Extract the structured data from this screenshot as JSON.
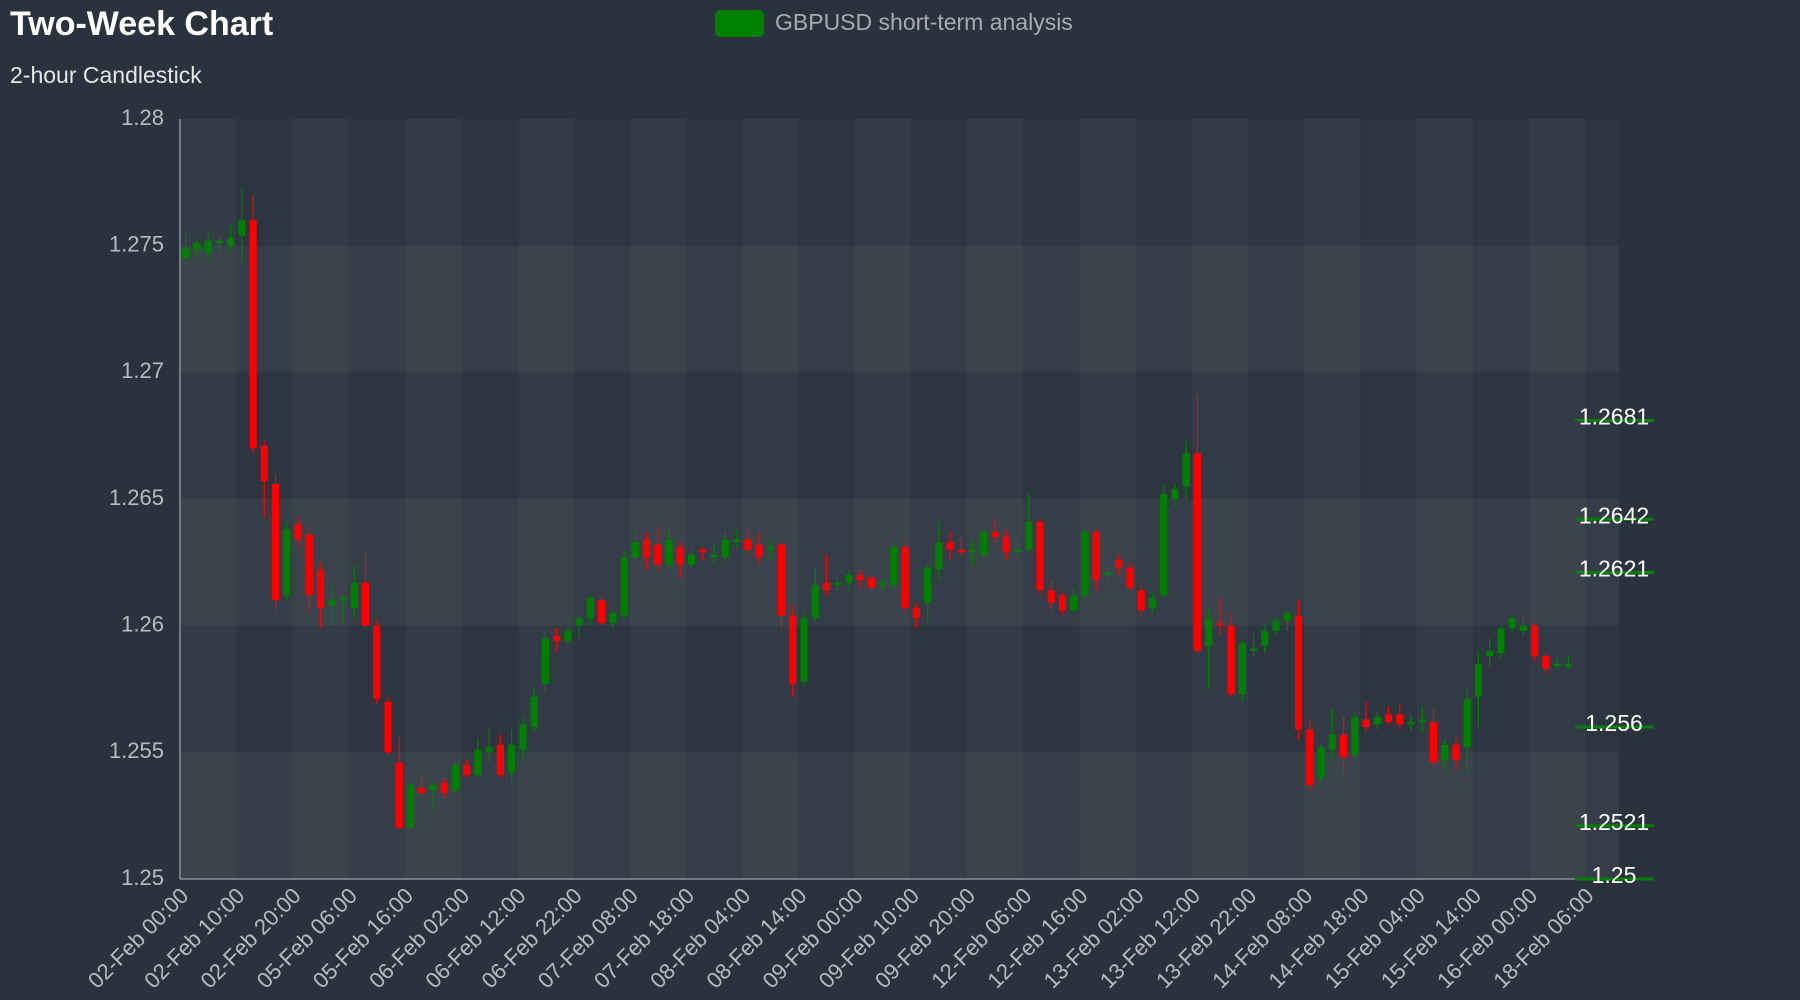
{
  "chart_data": {
    "type": "candlestick",
    "title": "Two-Week Chart",
    "subtitle": "2-hour Candlestick",
    "categories": [
      "02-Feb 00:00",
      null,
      null,
      null,
      null,
      "02-Feb 10:00",
      null,
      null,
      null,
      null,
      "02-Feb 20:00",
      null,
      null,
      null,
      null,
      "05-Feb 06:00",
      null,
      null,
      null,
      null,
      "05-Feb 16:00",
      null,
      null,
      null,
      null,
      "06-Feb 02:00",
      null,
      null,
      null,
      null,
      "06-Feb 12:00",
      null,
      null,
      null,
      null,
      "06-Feb 22:00",
      null,
      null,
      null,
      null,
      "07-Feb 08:00",
      null,
      null,
      null,
      null,
      "07-Feb 18:00",
      null,
      null,
      null,
      null,
      "08-Feb 04:00",
      null,
      null,
      null,
      null,
      "08-Feb 14:00",
      null,
      null,
      null,
      null,
      "09-Feb 00:00",
      null,
      null,
      null,
      null,
      "09-Feb 10:00",
      null,
      null,
      null,
      null,
      "09-Feb 20:00",
      null,
      null,
      null,
      null,
      "12-Feb 06:00",
      null,
      null,
      null,
      null,
      "12-Feb 16:00",
      null,
      null,
      null,
      null,
      "13-Feb 02:00",
      null,
      null,
      null,
      null,
      "13-Feb 12:00",
      null,
      null,
      null,
      null,
      "13-Feb 22:00",
      null,
      null,
      null,
      null,
      "14-Feb 08:00",
      null,
      null,
      null,
      null,
      "14-Feb 18:00",
      null,
      null,
      null,
      null,
      "15-Feb 04:00",
      null,
      null,
      null,
      null,
      "15-Feb 14:00",
      null,
      null,
      null,
      null,
      "16-Feb 00:00",
      null,
      null,
      null,
      null,
      "18-Feb 06:00",
      null,
      null
    ],
    "series": [
      {
        "name": "GBPUSD short-term analysis",
        "color": "#008000",
        "down_color": "#ff0000",
        "values": [
          [
            1.2745,
            1.2755,
            1.2743,
            1.2749
          ],
          [
            1.2748,
            1.2753,
            1.2745,
            1.2751
          ],
          [
            1.2747,
            1.2755,
            1.2744,
            1.2752
          ],
          [
            1.2751,
            1.2754,
            1.2747,
            1.2752
          ],
          [
            1.275,
            1.2758,
            1.2748,
            1.2753
          ],
          [
            1.2754,
            1.2773,
            1.2743,
            1.276
          ],
          [
            1.276,
            1.277,
            1.2668,
            1.267
          ],
          [
            1.2671,
            1.2673,
            1.2643,
            1.2657
          ],
          [
            1.2656,
            1.266,
            1.2606,
            1.261
          ],
          [
            1.2612,
            1.2641,
            1.261,
            1.2638
          ],
          [
            1.264,
            1.2643,
            1.2631,
            1.2634
          ],
          [
            1.2636,
            1.2639,
            1.2605,
            1.2612
          ],
          [
            1.2622,
            1.2625,
            1.2599,
            1.2607
          ],
          [
            1.2608,
            1.2616,
            1.26,
            1.261
          ],
          [
            1.261,
            1.2612,
            1.2601,
            1.2611
          ],
          [
            1.2607,
            1.2624,
            1.2603,
            1.2617
          ],
          [
            1.2617,
            1.2629,
            1.2599,
            1.26
          ],
          [
            1.26,
            1.2602,
            1.2569,
            1.2571
          ],
          [
            1.257,
            1.2572,
            1.2549,
            1.255
          ],
          [
            1.2546,
            1.2556,
            1.252,
            1.252
          ],
          [
            1.252,
            1.2538,
            1.252,
            1.2537
          ],
          [
            1.2536,
            1.2541,
            1.2533,
            1.2534
          ],
          [
            1.2535,
            1.2538,
            1.2527,
            1.2537
          ],
          [
            1.2538,
            1.254,
            1.2532,
            1.2534
          ],
          [
            1.2535,
            1.2547,
            1.2533,
            1.2545
          ],
          [
            1.2545,
            1.2547,
            1.254,
            1.2541
          ],
          [
            1.2541,
            1.2555,
            1.254,
            1.2551
          ],
          [
            1.255,
            1.256,
            1.2546,
            1.2552
          ],
          [
            1.2553,
            1.2557,
            1.254,
            1.2541
          ],
          [
            1.2542,
            1.2559,
            1.2538,
            1.2553
          ],
          [
            1.2551,
            1.2564,
            1.2547,
            1.2561
          ],
          [
            1.256,
            1.2575,
            1.2558,
            1.2572
          ],
          [
            1.2577,
            1.2598,
            1.2574,
            1.2595
          ],
          [
            1.2596,
            1.2599,
            1.259,
            1.2594
          ],
          [
            1.2594,
            1.26,
            1.2593,
            1.2598
          ],
          [
            1.26,
            1.2604,
            1.2595,
            1.2603
          ],
          [
            1.2603,
            1.2612,
            1.26,
            1.2611
          ],
          [
            1.261,
            1.2612,
            1.26,
            1.2601
          ],
          [
            1.2601,
            1.2606,
            1.2599,
            1.2605
          ],
          [
            1.2604,
            1.263,
            1.2602,
            1.2627
          ],
          [
            1.2627,
            1.2638,
            1.2625,
            1.2633
          ],
          [
            1.2634,
            1.2637,
            1.2622,
            1.2627
          ],
          [
            1.2632,
            1.2639,
            1.2621,
            1.2624
          ],
          [
            1.2624,
            1.2638,
            1.2622,
            1.2634
          ],
          [
            1.2631,
            1.2633,
            1.2619,
            1.2624
          ],
          [
            1.2624,
            1.263,
            1.2622,
            1.2628
          ],
          [
            1.263,
            1.2631,
            1.2626,
            1.2629
          ],
          [
            1.2627,
            1.2632,
            1.2624,
            1.2628
          ],
          [
            1.2627,
            1.2637,
            1.2625,
            1.2634
          ],
          [
            1.2633,
            1.2638,
            1.2631,
            1.2634
          ],
          [
            1.2634,
            1.2638,
            1.2628,
            1.263
          ],
          [
            1.2632,
            1.2637,
            1.2624,
            1.2627
          ],
          [
            1.263,
            1.2634,
            1.2626,
            1.2631
          ],
          [
            1.2632,
            1.2634,
            1.2599,
            1.2604
          ],
          [
            1.2604,
            1.2608,
            1.2572,
            1.2577
          ],
          [
            1.2578,
            1.2606,
            1.2576,
            1.2603
          ],
          [
            1.2603,
            1.2623,
            1.2601,
            1.2616
          ],
          [
            1.2617,
            1.2628,
            1.2612,
            1.2614
          ],
          [
            1.2616,
            1.2619,
            1.2614,
            1.2617
          ],
          [
            1.2617,
            1.2622,
            1.2614,
            1.262
          ],
          [
            1.262,
            1.2622,
            1.2615,
            1.2618
          ],
          [
            1.2619,
            1.262,
            1.2613,
            1.2615
          ],
          [
            1.2616,
            1.2618,
            1.2614,
            1.2617
          ],
          [
            1.2616,
            1.2634,
            1.2614,
            1.2631
          ],
          [
            1.2631,
            1.2633,
            1.2605,
            1.2607
          ],
          [
            1.2607,
            1.2609,
            1.2599,
            1.2603
          ],
          [
            1.2609,
            1.2625,
            1.2601,
            1.2623
          ],
          [
            1.2622,
            1.2641,
            1.2618,
            1.2633
          ],
          [
            1.2633,
            1.2637,
            1.2626,
            1.263
          ],
          [
            1.263,
            1.2635,
            1.2627,
            1.2629
          ],
          [
            1.2629,
            1.2634,
            1.2624,
            1.263
          ],
          [
            1.2628,
            1.2638,
            1.2626,
            1.2637
          ],
          [
            1.2637,
            1.2642,
            1.2633,
            1.2635
          ],
          [
            1.2635,
            1.2638,
            1.2626,
            1.2629
          ],
          [
            1.2629,
            1.2633,
            1.2628,
            1.263
          ],
          [
            1.263,
            1.2652,
            1.2629,
            1.2641
          ],
          [
            1.2641,
            1.2642,
            1.2612,
            1.2614
          ],
          [
            1.2614,
            1.2618,
            1.2606,
            1.2609
          ],
          [
            1.2612,
            1.2613,
            1.2604,
            1.2606
          ],
          [
            1.2606,
            1.2615,
            1.2605,
            1.2612
          ],
          [
            1.2612,
            1.2638,
            1.261,
            1.2637
          ],
          [
            1.2637,
            1.2638,
            1.2614,
            1.2618
          ],
          [
            1.262,
            1.2624,
            1.2618,
            1.2621
          ],
          [
            1.2626,
            1.2628,
            1.262,
            1.2623
          ],
          [
            1.2623,
            1.2625,
            1.2614,
            1.2615
          ],
          [
            1.2614,
            1.2616,
            1.2604,
            1.2606
          ],
          [
            1.2607,
            1.2613,
            1.2605,
            1.2611
          ],
          [
            1.2612,
            1.2656,
            1.2611,
            1.2652
          ],
          [
            1.265,
            1.2656,
            1.2647,
            1.2654
          ],
          [
            1.2655,
            1.2673,
            1.265,
            1.2668
          ],
          [
            1.2668,
            1.2691,
            1.2589,
            1.259
          ],
          [
            1.2592,
            1.2607,
            1.2575,
            1.2603
          ],
          [
            1.2601,
            1.2611,
            1.2596,
            1.26
          ],
          [
            1.26,
            1.2605,
            1.2572,
            1.2573
          ],
          [
            1.2573,
            1.2594,
            1.257,
            1.2593
          ],
          [
            1.259,
            1.2597,
            1.2588,
            1.2591
          ],
          [
            1.2592,
            1.2601,
            1.2589,
            1.2598
          ],
          [
            1.2598,
            1.2603,
            1.2596,
            1.2602
          ],
          [
            1.2602,
            1.2606,
            1.2598,
            1.2605
          ],
          [
            1.2604,
            1.261,
            1.2555,
            1.2559
          ],
          [
            1.2559,
            1.2563,
            1.2535,
            1.2537
          ],
          [
            1.254,
            1.2553,
            1.2536,
            1.2552
          ],
          [
            1.2551,
            1.2567,
            1.2547,
            1.2557
          ],
          [
            1.2557,
            1.2564,
            1.2541,
            1.2548
          ],
          [
            1.2549,
            1.2566,
            1.2548,
            1.2564
          ],
          [
            1.2563,
            1.257,
            1.2558,
            1.256
          ],
          [
            1.2561,
            1.2566,
            1.2559,
            1.2564
          ],
          [
            1.2565,
            1.2568,
            1.2561,
            1.2562
          ],
          [
            1.2565,
            1.2569,
            1.2559,
            1.2561
          ],
          [
            1.2561,
            1.2565,
            1.2558,
            1.2562
          ],
          [
            1.2562,
            1.2568,
            1.2558,
            1.2563
          ],
          [
            1.2562,
            1.2567,
            1.2543,
            1.2546
          ],
          [
            1.2547,
            1.2555,
            1.2543,
            1.2553
          ],
          [
            1.2553,
            1.2556,
            1.2543,
            1.2547
          ],
          [
            1.2552,
            1.2576,
            1.2542,
            1.2571
          ],
          [
            1.2572,
            1.259,
            1.256,
            1.2585
          ],
          [
            1.2588,
            1.2595,
            1.2584,
            1.259
          ],
          [
            1.2589,
            1.26,
            1.2587,
            1.2599
          ],
          [
            1.2599,
            1.2604,
            1.2597,
            1.2603
          ],
          [
            1.2598,
            1.2604,
            1.2596,
            1.26
          ],
          [
            1.26,
            1.2601,
            1.2586,
            1.2588
          ],
          [
            1.2588,
            1.2589,
            1.2581,
            1.2583
          ],
          [
            1.2584,
            1.2587,
            1.2582,
            1.2585
          ],
          [
            1.2584,
            1.2588,
            1.2583,
            1.2585
          ],
          null,
          null,
          null,
          null
        ]
      }
    ],
    "ylim": [
      1.25,
      1.28
    ],
    "yticks": [
      1.25,
      1.255,
      1.26,
      1.265,
      1.27,
      1.275,
      1.28
    ],
    "levels": [
      1.2681,
      1.2642,
      1.2621,
      1.256,
      1.2521,
      1.25
    ],
    "level_color": "#008000"
  }
}
